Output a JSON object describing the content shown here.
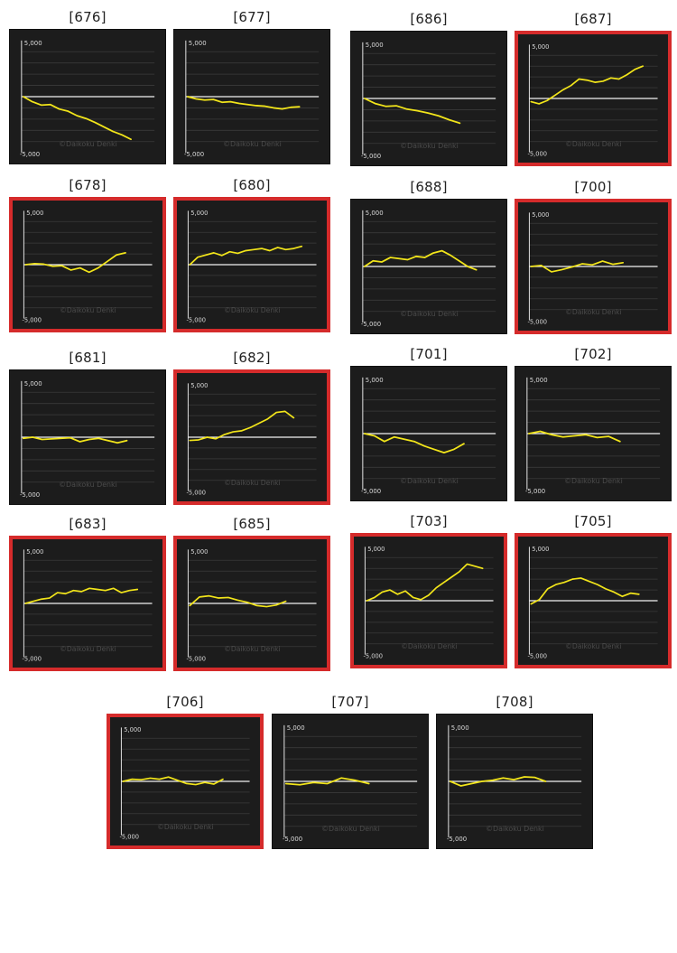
{
  "chart_data": [
    {
      "title": "[676]",
      "type": "line",
      "ylim": [
        -5000,
        5000
      ],
      "highlight": false,
      "y_ticks": [
        "5,000",
        "-5,000"
      ],
      "watermark": "©Daikoku Denki",
      "series": [
        {
          "values": [
            0,
            -450,
            -750,
            -700,
            -1100,
            -1300,
            -1700,
            -1950,
            -2300,
            -2700,
            -3100,
            -3400,
            -3800
          ]
        }
      ]
    },
    {
      "title": "[677]",
      "type": "line",
      "ylim": [
        -5000,
        5000
      ],
      "highlight": false,
      "y_ticks": [
        "5,000",
        "-5,000"
      ],
      "watermark": "©Daikoku Denki",
      "series": [
        {
          "values": [
            0,
            -200,
            -300,
            -250,
            -500,
            -450,
            -600,
            -700,
            -800,
            -850,
            -1000,
            -1100,
            -950,
            -900
          ]
        }
      ]
    },
    {
      "title": "[686]",
      "type": "line",
      "ylim": [
        -5000,
        5000
      ],
      "highlight": false,
      "y_ticks": [
        "5,000",
        "-5,000"
      ],
      "watermark": "©Daikoku Denki",
      "series": [
        {
          "values": [
            0,
            -450,
            -700,
            -650,
            -950,
            -1100,
            -1300,
            -1550,
            -1900,
            -2200
          ]
        }
      ]
    },
    {
      "title": "[687]",
      "type": "line",
      "ylim": [
        -5000,
        5000
      ],
      "highlight": true,
      "y_ticks": [
        "5,000",
        "-5,000"
      ],
      "watermark": "©Daikoku Denki",
      "series": [
        {
          "values": [
            -300,
            -500,
            -200,
            300,
            800,
            1200,
            1800,
            1700,
            1500,
            1600,
            1900,
            1800,
            2200,
            2700,
            3000
          ]
        }
      ]
    },
    {
      "title": "[678]",
      "type": "line",
      "ylim": [
        -5000,
        5000
      ],
      "highlight": true,
      "y_ticks": [
        "5,000",
        "-5,000"
      ],
      "watermark": "©Daikoku Denki",
      "series": [
        {
          "values": [
            0,
            100,
            50,
            -150,
            -100,
            -500,
            -300,
            -700,
            -300,
            300,
            900,
            1100
          ]
        }
      ]
    },
    {
      "title": "[680]",
      "type": "line",
      "ylim": [
        -5000,
        5000
      ],
      "highlight": true,
      "y_ticks": [
        "5,000",
        "-5,000"
      ],
      "watermark": "©Daikoku Denki",
      "series": [
        {
          "values": [
            0,
            700,
            900,
            1100,
            850,
            1200,
            1050,
            1300,
            1400,
            1500,
            1300,
            1600,
            1400,
            1500,
            1700
          ]
        }
      ]
    },
    {
      "title": "[688]",
      "type": "line",
      "ylim": [
        -5000,
        5000
      ],
      "highlight": false,
      "y_ticks": [
        "5,000",
        "-5,000"
      ],
      "watermark": "©Daikoku Denki",
      "series": [
        {
          "values": [
            0,
            500,
            400,
            800,
            700,
            600,
            900,
            800,
            1200,
            1400,
            1000,
            500,
            0,
            -300
          ]
        }
      ]
    },
    {
      "title": "[700]",
      "type": "line",
      "ylim": [
        -5000,
        5000
      ],
      "highlight": true,
      "y_ticks": [
        "5,000",
        "-5,000"
      ],
      "watermark": "©Daikoku Denki",
      "series": [
        {
          "values": [
            0,
            100,
            -500,
            -300,
            -50,
            250,
            150,
            500,
            200,
            350
          ]
        }
      ]
    },
    {
      "title": "[681]",
      "type": "line",
      "ylim": [
        -5000,
        5000
      ],
      "highlight": false,
      "y_ticks": [
        "5,000",
        "-5,000"
      ],
      "watermark": "©Daikoku Denki",
      "series": [
        {
          "values": [
            -100,
            0,
            -200,
            -150,
            -100,
            -50,
            -400,
            -200,
            -100,
            -300,
            -500,
            -300
          ]
        }
      ]
    },
    {
      "title": "[682]",
      "type": "line",
      "ylim": [
        -5000,
        5000
      ],
      "highlight": true,
      "y_ticks": [
        "5,000",
        "-5,000"
      ],
      "watermark": "©Daikoku Denki",
      "series": [
        {
          "values": [
            -300,
            -250,
            0,
            -150,
            250,
            500,
            600,
            900,
            1300,
            1700,
            2300,
            2400,
            1800
          ]
        }
      ]
    },
    {
      "title": "[701]",
      "type": "line",
      "ylim": [
        -5000,
        5000
      ],
      "highlight": false,
      "y_ticks": [
        "5,000",
        "-5,000"
      ],
      "watermark": "©Daikoku Denki",
      "series": [
        {
          "values": [
            0,
            -200,
            -700,
            -300,
            -500,
            -700,
            -1100,
            -1400,
            -1700,
            -1400,
            -900
          ]
        }
      ]
    },
    {
      "title": "[702]",
      "type": "line",
      "ylim": [
        -5000,
        5000
      ],
      "highlight": false,
      "y_ticks": [
        "5,000",
        "-5,000"
      ],
      "watermark": "©Daikoku Denki",
      "series": [
        {
          "values": [
            0,
            200,
            -100,
            -300,
            -200,
            -100,
            -350,
            -250,
            -700
          ]
        }
      ]
    },
    {
      "title": "[683]",
      "type": "line",
      "ylim": [
        -5000,
        5000
      ],
      "highlight": true,
      "y_ticks": [
        "5,000",
        "-5,000"
      ],
      "watermark": "©Daikoku Denki",
      "series": [
        {
          "values": [
            0,
            200,
            400,
            500,
            1000,
            900,
            1200,
            1100,
            1400,
            1300,
            1200,
            1400,
            1000,
            1200,
            1300
          ]
        }
      ]
    },
    {
      "title": "[685]",
      "type": "line",
      "ylim": [
        -5000,
        5000
      ],
      "highlight": true,
      "y_ticks": [
        "5,000",
        "-5,000"
      ],
      "watermark": "©Daikoku Denki",
      "series": [
        {
          "values": [
            -200,
            600,
            700,
            500,
            550,
            300,
            100,
            -200,
            -300,
            -150,
            200
          ]
        }
      ]
    },
    {
      "title": "[703]",
      "type": "line",
      "ylim": [
        -5000,
        5000
      ],
      "highlight": true,
      "y_ticks": [
        "5,000",
        "-5,000"
      ],
      "watermark": "©Daikoku Denki",
      "series": [
        {
          "values": [
            0,
            300,
            800,
            1000,
            600,
            900,
            300,
            100,
            500,
            1200,
            1700,
            2200,
            2700,
            3400,
            3200,
            3000
          ]
        }
      ]
    },
    {
      "title": "[705]",
      "type": "line",
      "ylim": [
        -5000,
        5000
      ],
      "highlight": true,
      "y_ticks": [
        "5,000",
        "-5,000"
      ],
      "watermark": "©Daikoku Denki",
      "series": [
        {
          "values": [
            -300,
            100,
            1100,
            1500,
            1700,
            2000,
            2100,
            1800,
            1500,
            1100,
            800,
            400,
            700,
            600
          ]
        }
      ]
    },
    {
      "title": "[706]",
      "type": "line",
      "ylim": [
        -5000,
        5000
      ],
      "highlight": true,
      "y_ticks": [
        "5,000",
        "-5,000"
      ],
      "watermark": "©Daikoku Denki",
      "series": [
        {
          "values": [
            0,
            200,
            150,
            300,
            200,
            400,
            100,
            -200,
            -300,
            -100,
            -250,
            200
          ]
        }
      ]
    },
    {
      "title": "[707]",
      "type": "line",
      "ylim": [
        -5000,
        5000
      ],
      "highlight": false,
      "y_ticks": [
        "5,000",
        "-5,000"
      ],
      "watermark": "©Daikoku Denki",
      "series": [
        {
          "values": [
            -200,
            -300,
            -100,
            -200,
            300,
            100,
            -200
          ]
        }
      ]
    },
    {
      "title": "[708]",
      "type": "line",
      "ylim": [
        -5000,
        5000
      ],
      "highlight": false,
      "y_ticks": [
        "5,000",
        "-5,000"
      ],
      "watermark": "©Daikoku Denki",
      "series": [
        {
          "values": [
            0,
            -400,
            -200,
            0,
            100,
            300,
            150,
            400,
            350,
            0
          ]
        }
      ]
    }
  ],
  "colors": {
    "panel_bg": "#1c1c1c",
    "line": "#f2e51a",
    "zero_line": "#f3f3f3",
    "grid": "#3a3a3a",
    "axis": "#e7e7e7",
    "highlight": "#d52b2b"
  }
}
